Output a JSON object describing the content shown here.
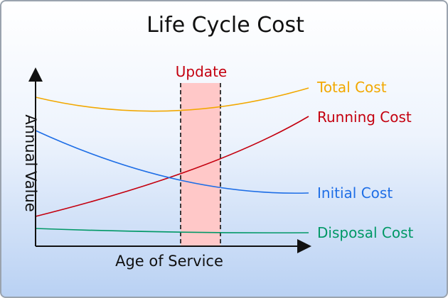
{
  "title": "Life Cycle Cost",
  "x_axis_label": "Age of Service",
  "y_axis_label": "Annual Value",
  "update_label": "Update",
  "colors": {
    "total": "#f2a800",
    "running": "#c4000f",
    "initial": "#1e6ee6",
    "disposal": "#009866",
    "update_band": "#ffc8c8",
    "axis": "#111111"
  },
  "curves": [
    {
      "key": "total",
      "label": "Total Cost",
      "color": "#f2a800"
    },
    {
      "key": "running",
      "label": "Running Cost",
      "color": "#c4000f"
    },
    {
      "key": "initial",
      "label": "Initial Cost",
      "color": "#1e6ee6"
    },
    {
      "key": "disposal",
      "label": "Disposal Cost",
      "color": "#009866"
    }
  ]
}
